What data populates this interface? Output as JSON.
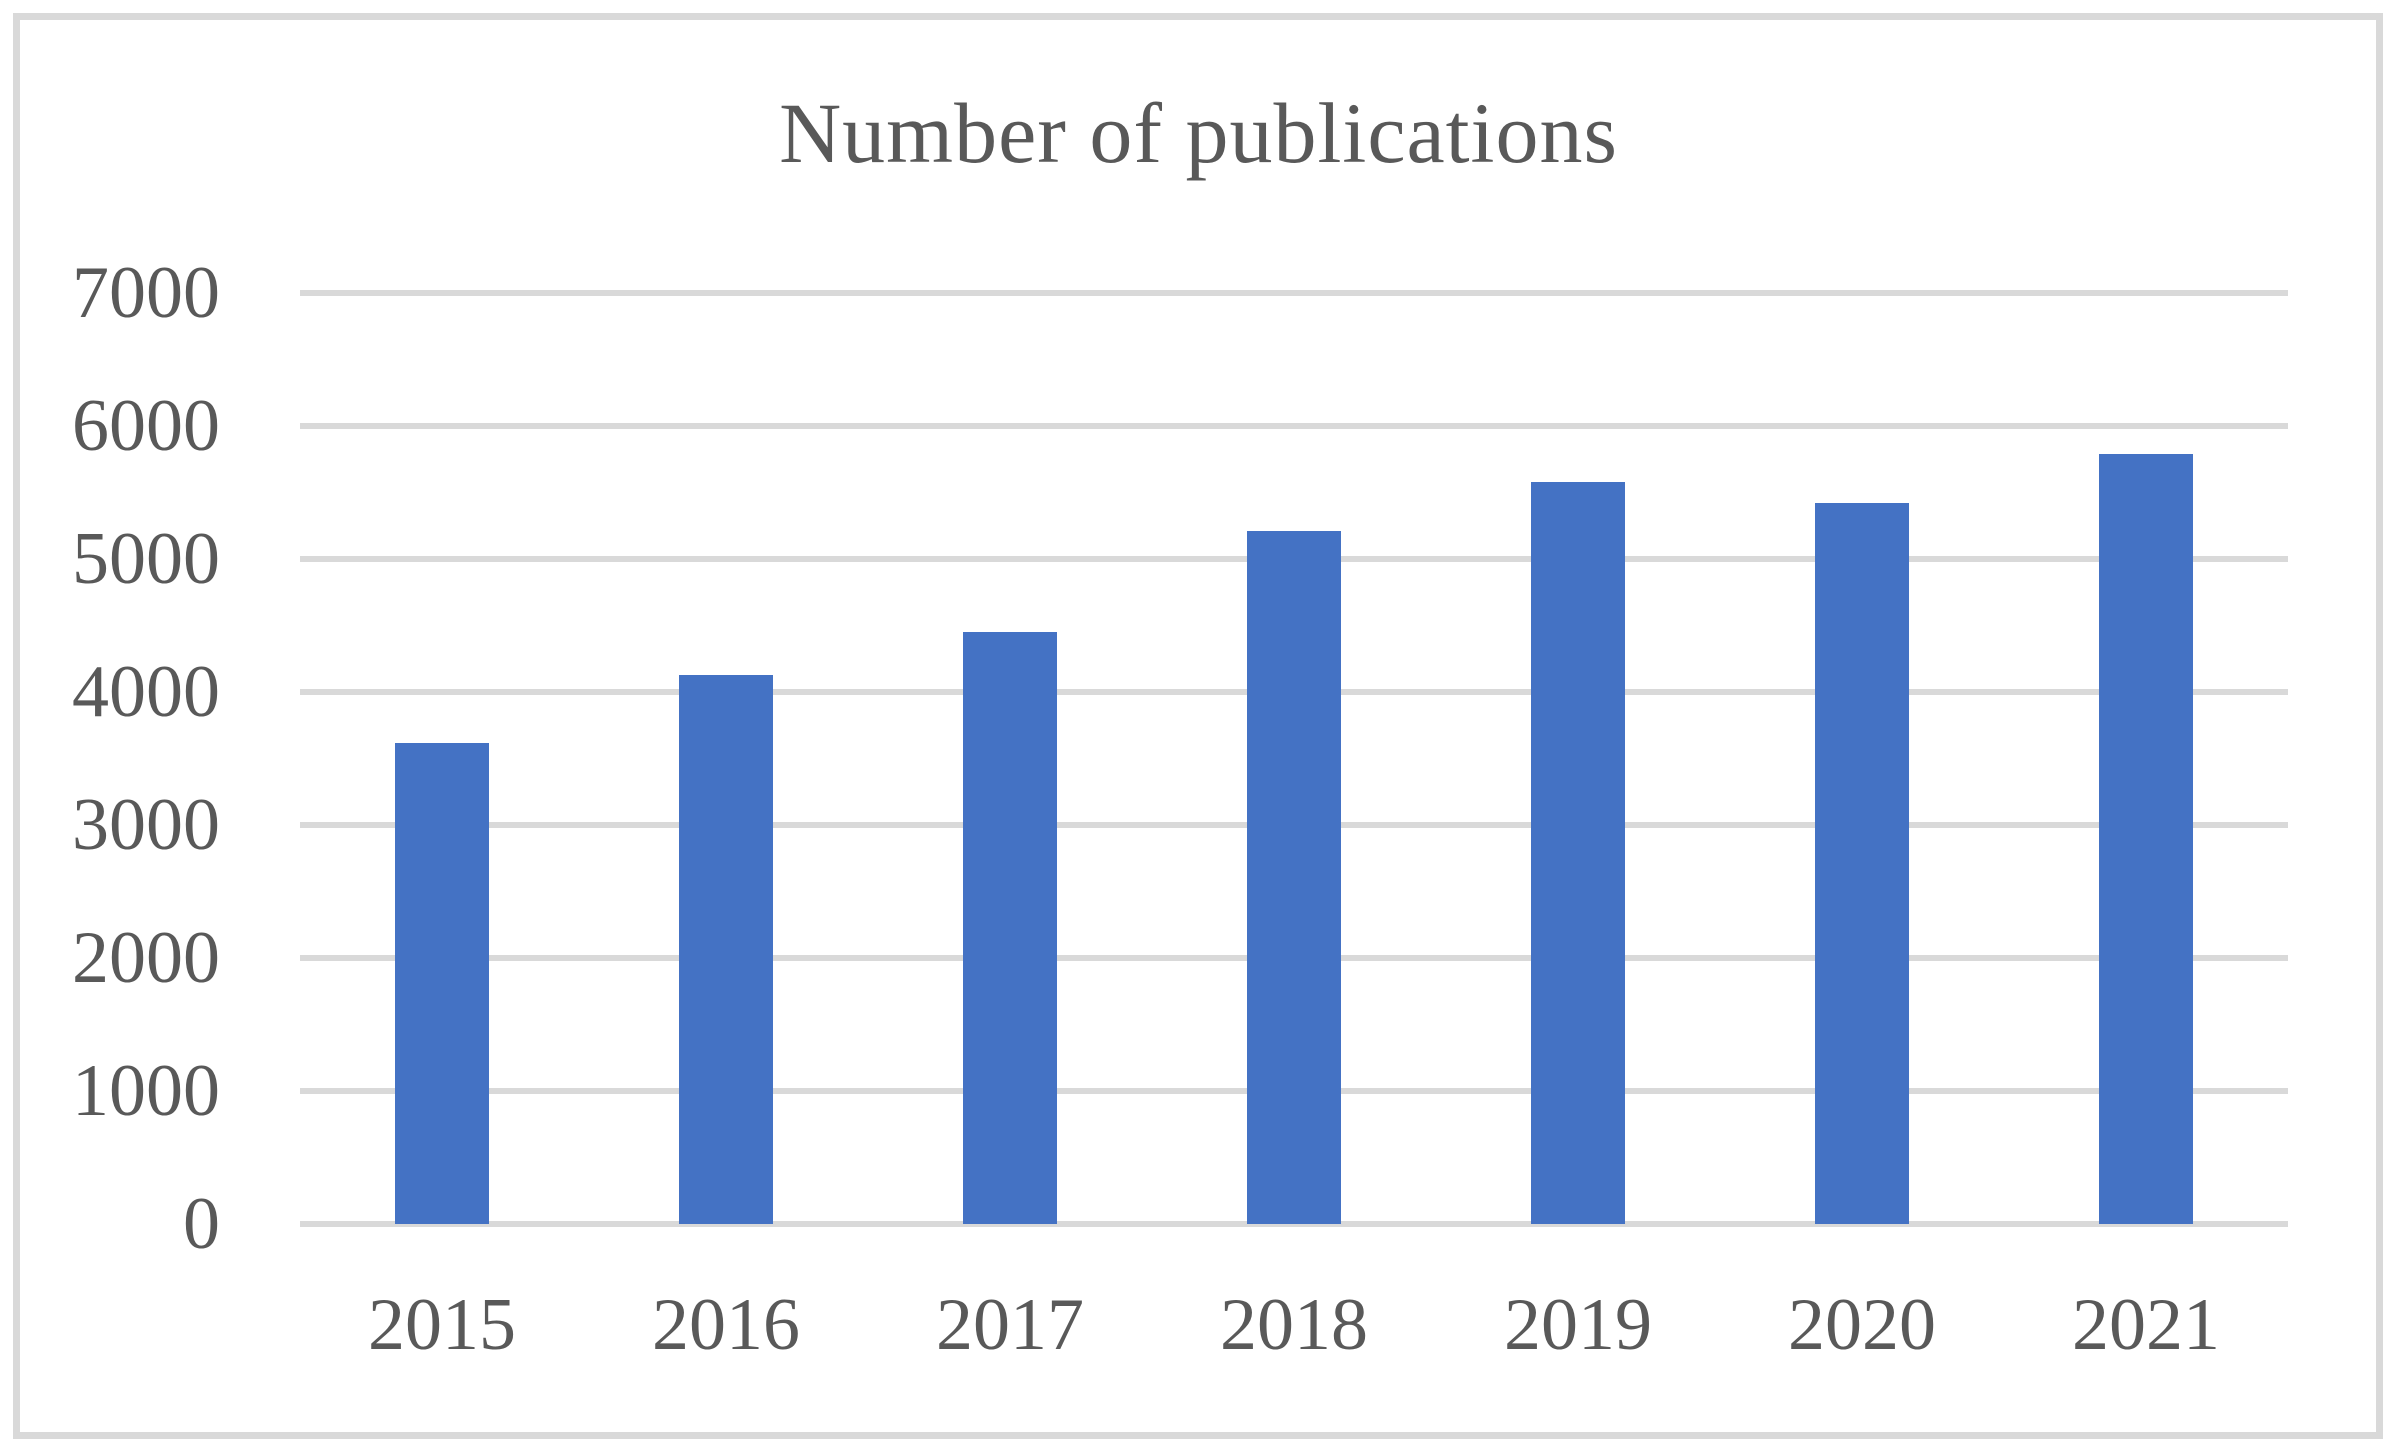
{
  "chart_data": {
    "type": "bar",
    "title": "Number of publications",
    "categories": [
      "2015",
      "2016",
      "2017",
      "2018",
      "2019",
      "2020",
      "2021"
    ],
    "values": [
      3620,
      4130,
      4450,
      5210,
      5580,
      5420,
      5790
    ],
    "xlabel": "",
    "ylabel": "",
    "ylim": [
      0,
      7000
    ],
    "ytick_step": 1000,
    "ytick_labels": [
      "0",
      "1000",
      "2000",
      "3000",
      "4000",
      "5000",
      "6000",
      "7000"
    ],
    "grid": "horizontal",
    "legend": "none",
    "bar_color": "#4472c4",
    "gridline_color": "#d9d9d9",
    "text_color": "#595959",
    "border_color": "#d9d9d9"
  }
}
